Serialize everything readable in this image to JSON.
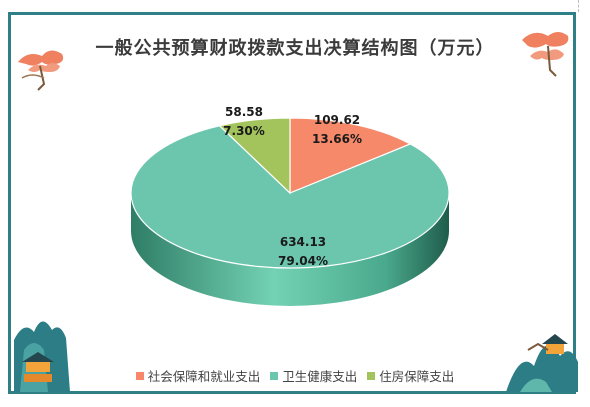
{
  "chart_data": {
    "type": "pie",
    "title": "一般公共预算财政拨款支出决算结构图（万元）",
    "slices": [
      {
        "name": "社会保障和就业支出",
        "value": 109.62,
        "value_label": "109.62",
        "percent_label": "13.66%",
        "color": "#f5896a"
      },
      {
        "name": "卫生健康支出",
        "value": 634.13,
        "value_label": "634.13",
        "percent_label": "79.04%",
        "color": "#6cc5ad"
      },
      {
        "name": "住房保障支出",
        "value": 58.58,
        "value_label": "58.58",
        "percent_label": "7.30%",
        "color": "#a3c45c"
      }
    ],
    "legend_position": "bottom"
  }
}
